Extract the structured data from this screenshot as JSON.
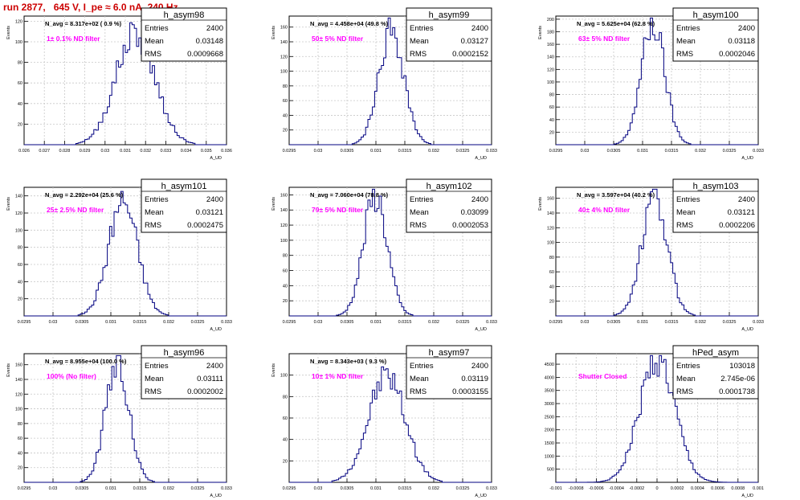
{
  "run_title": "run 2877,   645 V, I_pe ≈ 6.0 nA, 240 Hz",
  "colors": {
    "title": "#cc0000",
    "histogram": "#000080",
    "annotation": "#ff00ff",
    "grid": "#c8c8c8"
  },
  "chart_data": [
    {
      "type": "histogram",
      "name": "h_asym98",
      "xlabel": "A_UD",
      "ylabel": "Events",
      "navg": "N_avg = 8.317e+02 ( 0.9 %)",
      "note": "1± 0.1% ND filter",
      "stats": {
        "entries": "2400",
        "mean": "0.03148",
        "rms": "0.0009668"
      },
      "xlim": [
        0.026,
        0.036
      ],
      "ylim": [
        0,
        125
      ],
      "xticks": [
        "0.026",
        "0.027",
        "0.028",
        "0.029",
        "0.03",
        "0.031",
        "0.032",
        "0.033",
        "0.034",
        "0.035",
        "0.036"
      ],
      "yticks": [
        "20",
        "40",
        "60",
        "80",
        "100",
        "120"
      ],
      "ytick_values": [
        20,
        40,
        60,
        80,
        100,
        120
      ],
      "peak_x": 0.0315,
      "sigma": 0.00097,
      "peak_y": 108,
      "seed": 98
    },
    {
      "type": "histogram",
      "name": "h_asym99",
      "xlabel": "A_UD",
      "ylabel": "Events",
      "navg": "N_avg = 4.458e+04 (49.8 %)",
      "note": "50± 5% ND filter",
      "stats": {
        "entries": "2400",
        "mean": "0.03127",
        "rms": "0.0002152"
      },
      "xlim": [
        0.0295,
        0.033
      ],
      "ylim": [
        0,
        175
      ],
      "xticks": [
        "0.0295",
        "0.03",
        "0.0305",
        "0.031",
        "0.0315",
        "0.032",
        "0.0325",
        "0.033"
      ],
      "yticks": [
        "20",
        "40",
        "60",
        "80",
        "100",
        "120",
        "140",
        "160"
      ],
      "ytick_values": [
        20,
        40,
        60,
        80,
        100,
        120,
        140,
        160
      ],
      "peak_x": 0.03127,
      "sigma": 0.000215,
      "peak_y": 158,
      "seed": 99
    },
    {
      "type": "histogram",
      "name": "h_asym100",
      "xlabel": "A_UD",
      "ylabel": "Events",
      "navg": "N_avg = 5.625e+04 (62.8 %)",
      "note": "63± 5% ND filter",
      "stats": {
        "entries": "2400",
        "mean": "0.03118",
        "rms": "0.0002046"
      },
      "xlim": [
        0.0295,
        0.033
      ],
      "ylim": [
        0,
        205
      ],
      "xticks": [
        "0.0295",
        "0.03",
        "0.0305",
        "0.031",
        "0.0315",
        "0.032",
        "0.0325",
        "0.033"
      ],
      "yticks": [
        "20",
        "40",
        "60",
        "80",
        "100",
        "120",
        "140",
        "160",
        "180",
        "200"
      ],
      "ytick_values": [
        20,
        40,
        60,
        80,
        100,
        120,
        140,
        160,
        180,
        200
      ],
      "peak_x": 0.03118,
      "sigma": 0.000205,
      "peak_y": 190,
      "seed": 100
    },
    {
      "type": "histogram",
      "name": "h_asym101",
      "xlabel": "A_UD",
      "ylabel": "Events",
      "navg": "N_avg = 2.292e+04 (25.6 %)",
      "note": "25± 2.5% ND filter",
      "stats": {
        "entries": "2400",
        "mean": "0.03121",
        "rms": "0.0002475"
      },
      "xlim": [
        0.0295,
        0.033
      ],
      "ylim": [
        0,
        150
      ],
      "xticks": [
        "0.0295",
        "0.03",
        "0.0305",
        "0.031",
        "0.0315",
        "0.032",
        "0.0325",
        "0.033"
      ],
      "yticks": [
        "20",
        "40",
        "60",
        "80",
        "100",
        "120",
        "140"
      ],
      "ytick_values": [
        20,
        40,
        60,
        80,
        100,
        120,
        140
      ],
      "peak_x": 0.03121,
      "sigma": 0.000248,
      "peak_y": 135,
      "seed": 101
    },
    {
      "type": "histogram",
      "name": "h_asym102",
      "xlabel": "A_UD",
      "ylabel": "Events",
      "navg": "N_avg = 7.060e+04 (78.8 %)",
      "note": "79± 5% ND filter",
      "stats": {
        "entries": "2400",
        "mean": "0.03099",
        "rms": "0.0002053"
      },
      "xlim": [
        0.0295,
        0.033
      ],
      "ylim": [
        0,
        170
      ],
      "xticks": [
        "0.0295",
        "0.03",
        "0.0305",
        "0.031",
        "0.0315",
        "0.032",
        "0.0325",
        "0.033"
      ],
      "yticks": [
        "20",
        "40",
        "60",
        "80",
        "100",
        "120",
        "140",
        "160"
      ],
      "ytick_values": [
        20,
        40,
        60,
        80,
        100,
        120,
        140,
        160
      ],
      "peak_x": 0.03099,
      "sigma": 0.000205,
      "peak_y": 160,
      "seed": 102
    },
    {
      "type": "histogram",
      "name": "h_asym103",
      "xlabel": "A_UD",
      "ylabel": "Events",
      "navg": "N_avg = 3.597e+04 (40.2 %)",
      "note": "40± 4% ND filter",
      "stats": {
        "entries": "2400",
        "mean": "0.03121",
        "rms": "0.0002206"
      },
      "xlim": [
        0.0295,
        0.033
      ],
      "ylim": [
        0,
        175
      ],
      "xticks": [
        "0.0295",
        "0.03",
        "0.0305",
        "0.031",
        "0.0315",
        "0.032",
        "0.0325",
        "0.033"
      ],
      "yticks": [
        "20",
        "40",
        "60",
        "80",
        "100",
        "120",
        "140",
        "160"
      ],
      "ytick_values": [
        20,
        40,
        60,
        80,
        100,
        120,
        140,
        160
      ],
      "peak_x": 0.03121,
      "sigma": 0.000221,
      "peak_y": 160,
      "seed": 103
    },
    {
      "type": "histogram",
      "name": "h_asym96",
      "xlabel": "A_UD",
      "ylabel": "Events",
      "navg": "N_avg = 8.955e+04 (100.0 %)",
      "note": "100% (No filter)",
      "stats": {
        "entries": "2400",
        "mean": "0.03111",
        "rms": "0.0002002"
      },
      "xlim": [
        0.0295,
        0.033
      ],
      "ylim": [
        0,
        175
      ],
      "xticks": [
        "0.0295",
        "0.03",
        "0.0305",
        "0.031",
        "0.0315",
        "0.032",
        "0.0325",
        "0.033"
      ],
      "yticks": [
        "20",
        "40",
        "60",
        "80",
        "100",
        "120",
        "140",
        "160"
      ],
      "ytick_values": [
        20,
        40,
        60,
        80,
        100,
        120,
        140,
        160
      ],
      "peak_x": 0.03111,
      "sigma": 0.0002,
      "peak_y": 165,
      "seed": 96
    },
    {
      "type": "histogram",
      "name": "h_asym97",
      "xlabel": "A_UD",
      "ylabel": "Events",
      "navg": "N_avg = 8.343e+03 ( 9.3 %)",
      "note": "10± 1% ND filter",
      "stats": {
        "entries": "2400",
        "mean": "0.03119",
        "rms": "0.0003155"
      },
      "xlim": [
        0.0295,
        0.033
      ],
      "ylim": [
        0,
        120
      ],
      "xticks": [
        "0.0295",
        "0.03",
        "0.0305",
        "0.031",
        "0.0315",
        "0.032",
        "0.0325",
        "0.033"
      ],
      "yticks": [
        "20",
        "40",
        "60",
        "80",
        "100"
      ],
      "ytick_values": [
        20,
        40,
        60,
        80,
        100
      ],
      "peak_x": 0.03119,
      "sigma": 0.000316,
      "peak_y": 100,
      "seed": 97
    },
    {
      "type": "histogram",
      "name": "hPed_asym",
      "xlabel": "A_UD",
      "ylabel": "",
      "navg": "",
      "note": "Shutter Closed",
      "stats": {
        "entries": "103018",
        "mean": "2.745e-06",
        "rms": "0.0001738"
      },
      "xlim": [
        -0.001,
        0.001
      ],
      "ylim": [
        0,
        4900
      ],
      "xticks": [
        "-0.001",
        "-0.0008",
        "-0.0006",
        "-0.0004",
        "-0.0002",
        "0",
        "0.0002",
        "0.0004",
        "0.0006",
        "0.0008",
        "0.001"
      ],
      "yticks": [
        "500",
        "1000",
        "1500",
        "2000",
        "2500",
        "3000",
        "3500",
        "4000",
        "4500"
      ],
      "ytick_values": [
        500,
        1000,
        1500,
        2000,
        2500,
        3000,
        3500,
        4000,
        4500
      ],
      "peak_x": 2.7e-06,
      "sigma": 0.000174,
      "peak_y": 4720,
      "seed": 1
    }
  ]
}
